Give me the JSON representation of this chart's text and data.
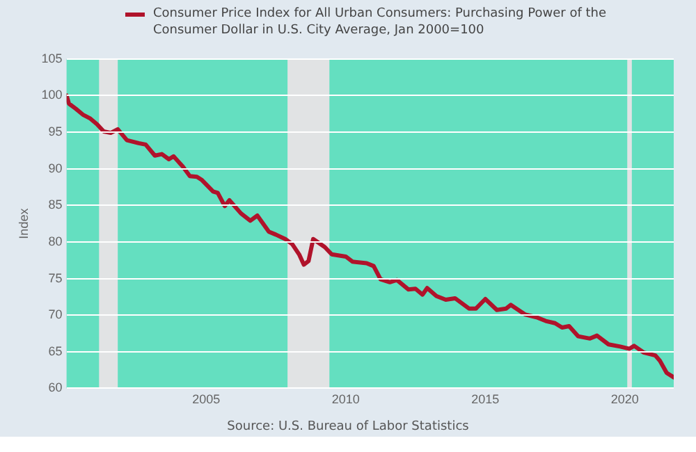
{
  "chart_data": {
    "type": "line",
    "ylabel": "Index",
    "annotations": [
      "Source: U.S. Bureau of Labor Statistics"
    ],
    "x": [
      "2000-01",
      "2000-02",
      "2000-05",
      "2000-08",
      "2000-11",
      "2001-02",
      "2001-05",
      "2001-08",
      "2001-11",
      "2002-03",
      "2002-08",
      "2002-11",
      "2003-03",
      "2003-06",
      "2003-09",
      "2003-11",
      "2004-03",
      "2004-06",
      "2004-09",
      "2004-11",
      "2005-04",
      "2005-06",
      "2005-09",
      "2005-11",
      "2006-04",
      "2006-08",
      "2006-11",
      "2007-04",
      "2007-07",
      "2007-11",
      "2008-02",
      "2008-05",
      "2008-07",
      "2008-09",
      "2008-11",
      "2009-04",
      "2009-07",
      "2010-01",
      "2010-04",
      "2010-10",
      "2011-01",
      "2011-04",
      "2011-08",
      "2011-11",
      "2012-04",
      "2012-07",
      "2012-10",
      "2012-12",
      "2013-04",
      "2013-08",
      "2013-12",
      "2014-06",
      "2014-09",
      "2015-01",
      "2015-06",
      "2015-10",
      "2015-12",
      "2016-06",
      "2016-11",
      "2017-03",
      "2017-07",
      "2017-10",
      "2018-01",
      "2018-05",
      "2018-10",
      "2019-01",
      "2019-06",
      "2019-11",
      "2020-03",
      "2020-05",
      "2020-09",
      "2021-02",
      "2021-04",
      "2021-07",
      "2021-10"
    ],
    "series": [
      {
        "name": "Consumer Price Index for All Urban Consumers: Purchasing Power of the Consumer Dollar in U.S. City Average, Jan 2000=100",
        "color": "#b0132b",
        "values": [
          100,
          98.9,
          98.2,
          97.4,
          96.9,
          96.1,
          95.1,
          94.9,
          95.4,
          93.9,
          93.5,
          93.3,
          91.8,
          92.0,
          91.3,
          91.7,
          90.3,
          89.0,
          88.9,
          88.5,
          86.9,
          86.7,
          84.9,
          85.7,
          83.9,
          82.9,
          83.6,
          81.4,
          81.0,
          80.4,
          79.7,
          78.3,
          76.9,
          77.4,
          80.4,
          79.3,
          78.3,
          78.0,
          77.3,
          77.1,
          76.7,
          74.9,
          74.5,
          74.8,
          73.5,
          73.6,
          72.8,
          73.7,
          72.6,
          72.1,
          72.3,
          70.9,
          70.9,
          72.2,
          70.7,
          70.9,
          71.4,
          70.1,
          69.7,
          69.2,
          68.9,
          68.3,
          68.5,
          67.1,
          66.8,
          67.2,
          66.0,
          65.7,
          65.4,
          65.8,
          64.9,
          64.5,
          63.8,
          62.1,
          61.5
        ]
      }
    ],
    "xlim": [
      "2000-01",
      "2021-10"
    ],
    "xticks": [
      "2005",
      "2010",
      "2015",
      "2020"
    ],
    "ylim": [
      60,
      105
    ],
    "yticks": [
      60,
      65,
      70,
      75,
      80,
      85,
      90,
      95,
      100,
      105
    ],
    "bands": [
      {
        "axis": "x",
        "from": "2001-03",
        "to": "2001-11",
        "color": "#e1e3e4"
      },
      {
        "axis": "x",
        "from": "2007-12",
        "to": "2009-06",
        "color": "#e1e3e4"
      },
      {
        "axis": "x",
        "from": "2020-02",
        "to": "2020-04",
        "color": "#e1e3e4"
      }
    ],
    "grid": "y",
    "legend": "top",
    "marker": "none",
    "line_style": "solid"
  }
}
